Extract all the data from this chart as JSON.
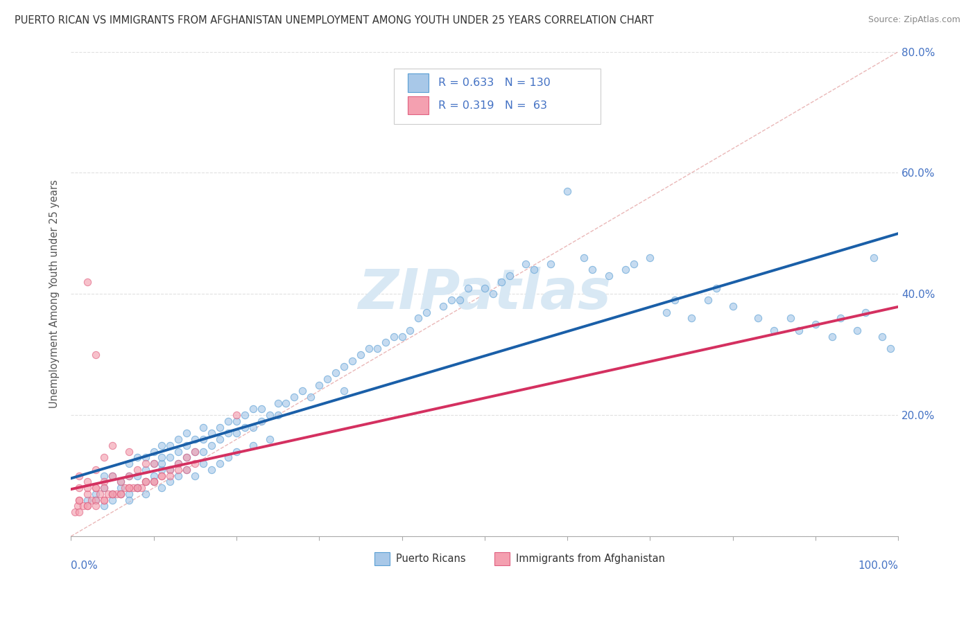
{
  "title": "PUERTO RICAN VS IMMIGRANTS FROM AFGHANISTAN UNEMPLOYMENT AMONG YOUTH UNDER 25 YEARS CORRELATION CHART",
  "source": "Source: ZipAtlas.com",
  "ylabel": "Unemployment Among Youth under 25 years",
  "blue_color": "#a8c8e8",
  "blue_edge_color": "#5a9fd4",
  "pink_color": "#f4a0b0",
  "pink_edge_color": "#e06080",
  "blue_line_color": "#1a5fa8",
  "pink_line_color": "#d43060",
  "diagonal_color": "#e8b0b0",
  "background_color": "#ffffff",
  "grid_color": "#e0e0e0",
  "watermark_color": "#d8e8f4",
  "tick_label_color": "#4472c4",
  "title_color": "#333333",
  "source_color": "#888888",
  "watermark": "ZIPatlas",
  "legend_R1": "R = 0.633",
  "legend_N1": "N = 130",
  "legend_R2": "R = 0.319",
  "legend_N2": "N =  63",
  "blue_N": 130,
  "pink_N": 63,
  "xlim": [
    0.0,
    1.0
  ],
  "ylim": [
    0.0,
    0.8
  ],
  "yticks": [
    0.0,
    0.2,
    0.4,
    0.6,
    0.8
  ],
  "ytick_labels": [
    "",
    "20.0%",
    "40.0%",
    "60.0%",
    "80.0%"
  ],
  "marker_size": 55,
  "marker_alpha": 0.65,
  "line_width": 2.8,
  "blue_scatter_x": [
    0.02,
    0.03,
    0.04,
    0.04,
    0.05,
    0.05,
    0.06,
    0.06,
    0.07,
    0.07,
    0.07,
    0.08,
    0.08,
    0.08,
    0.09,
    0.09,
    0.09,
    0.1,
    0.1,
    0.1,
    0.11,
    0.11,
    0.11,
    0.11,
    0.12,
    0.12,
    0.12,
    0.13,
    0.13,
    0.13,
    0.14,
    0.14,
    0.14,
    0.15,
    0.15,
    0.16,
    0.16,
    0.16,
    0.17,
    0.17,
    0.18,
    0.18,
    0.19,
    0.19,
    0.2,
    0.2,
    0.21,
    0.21,
    0.22,
    0.22,
    0.23,
    0.23,
    0.24,
    0.25,
    0.25,
    0.26,
    0.27,
    0.28,
    0.29,
    0.3,
    0.31,
    0.32,
    0.33,
    0.33,
    0.34,
    0.35,
    0.36,
    0.37,
    0.38,
    0.39,
    0.4,
    0.41,
    0.42,
    0.43,
    0.45,
    0.46,
    0.47,
    0.48,
    0.5,
    0.51,
    0.52,
    0.53,
    0.55,
    0.56,
    0.58,
    0.6,
    0.62,
    0.63,
    0.65,
    0.67,
    0.68,
    0.7,
    0.72,
    0.73,
    0.75,
    0.77,
    0.78,
    0.8,
    0.83,
    0.85,
    0.87,
    0.88,
    0.9,
    0.92,
    0.93,
    0.95,
    0.96,
    0.97,
    0.98,
    0.99,
    0.03,
    0.04,
    0.05,
    0.06,
    0.07,
    0.08,
    0.09,
    0.1,
    0.11,
    0.12,
    0.13,
    0.14,
    0.15,
    0.16,
    0.17,
    0.18,
    0.19,
    0.2,
    0.22,
    0.24
  ],
  "blue_scatter_y": [
    0.06,
    0.07,
    0.08,
    0.1,
    0.07,
    0.1,
    0.08,
    0.09,
    0.07,
    0.1,
    0.12,
    0.08,
    0.1,
    0.13,
    0.09,
    0.11,
    0.13,
    0.1,
    0.12,
    0.14,
    0.11,
    0.12,
    0.13,
    0.15,
    0.11,
    0.13,
    0.15,
    0.12,
    0.14,
    0.16,
    0.13,
    0.15,
    0.17,
    0.14,
    0.16,
    0.14,
    0.16,
    0.18,
    0.15,
    0.17,
    0.16,
    0.18,
    0.17,
    0.19,
    0.17,
    0.19,
    0.18,
    0.2,
    0.18,
    0.21,
    0.19,
    0.21,
    0.2,
    0.2,
    0.22,
    0.22,
    0.23,
    0.24,
    0.23,
    0.25,
    0.26,
    0.27,
    0.28,
    0.24,
    0.29,
    0.3,
    0.31,
    0.31,
    0.32,
    0.33,
    0.33,
    0.34,
    0.36,
    0.37,
    0.38,
    0.39,
    0.39,
    0.41,
    0.41,
    0.4,
    0.42,
    0.43,
    0.45,
    0.44,
    0.45,
    0.57,
    0.46,
    0.44,
    0.43,
    0.44,
    0.45,
    0.46,
    0.37,
    0.39,
    0.36,
    0.39,
    0.41,
    0.38,
    0.36,
    0.34,
    0.36,
    0.34,
    0.35,
    0.33,
    0.36,
    0.34,
    0.37,
    0.46,
    0.33,
    0.31,
    0.06,
    0.05,
    0.06,
    0.07,
    0.06,
    0.08,
    0.07,
    0.09,
    0.08,
    0.09,
    0.1,
    0.11,
    0.1,
    0.12,
    0.11,
    0.12,
    0.13,
    0.14,
    0.15,
    0.16
  ],
  "pink_scatter_x": [
    0.005,
    0.008,
    0.01,
    0.01,
    0.01,
    0.015,
    0.02,
    0.02,
    0.02,
    0.02,
    0.025,
    0.03,
    0.03,
    0.03,
    0.03,
    0.035,
    0.04,
    0.04,
    0.04,
    0.045,
    0.05,
    0.05,
    0.05,
    0.055,
    0.06,
    0.06,
    0.065,
    0.07,
    0.07,
    0.07,
    0.075,
    0.08,
    0.08,
    0.085,
    0.09,
    0.09,
    0.1,
    0.1,
    0.11,
    0.12,
    0.13,
    0.14,
    0.15,
    0.01,
    0.01,
    0.02,
    0.02,
    0.03,
    0.03,
    0.04,
    0.04,
    0.05,
    0.06,
    0.07,
    0.08,
    0.09,
    0.1,
    0.11,
    0.12,
    0.13,
    0.14,
    0.15,
    0.2
  ],
  "pink_scatter_y": [
    0.04,
    0.05,
    0.06,
    0.08,
    0.1,
    0.05,
    0.05,
    0.07,
    0.09,
    0.42,
    0.06,
    0.06,
    0.08,
    0.11,
    0.3,
    0.07,
    0.06,
    0.09,
    0.13,
    0.07,
    0.07,
    0.1,
    0.15,
    0.07,
    0.07,
    0.09,
    0.08,
    0.08,
    0.1,
    0.14,
    0.08,
    0.08,
    0.11,
    0.08,
    0.09,
    0.12,
    0.09,
    0.12,
    0.1,
    0.11,
    0.12,
    0.13,
    0.14,
    0.04,
    0.06,
    0.05,
    0.08,
    0.05,
    0.08,
    0.06,
    0.08,
    0.07,
    0.07,
    0.08,
    0.08,
    0.09,
    0.09,
    0.1,
    0.1,
    0.11,
    0.11,
    0.12,
    0.2
  ]
}
